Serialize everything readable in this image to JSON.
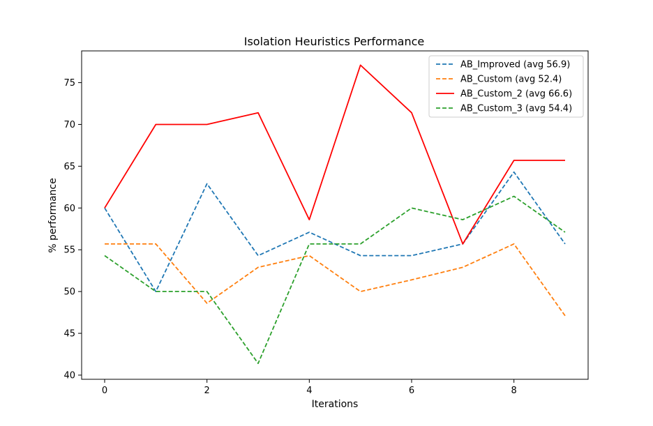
{
  "chart_data": {
    "type": "line",
    "title": "Isolation Heuristics Performance",
    "xlabel": "Iterations",
    "ylabel": "% performance",
    "x": [
      0,
      1,
      2,
      3,
      4,
      5,
      6,
      7,
      8,
      9
    ],
    "xlim": [
      -0.45,
      9.45
    ],
    "ylim": [
      39.5,
      78.8
    ],
    "xticks": [
      0,
      2,
      4,
      6,
      8
    ],
    "yticks": [
      40,
      45,
      50,
      55,
      60,
      65,
      70,
      75
    ],
    "grid": false,
    "legend_position": "top-right",
    "series": [
      {
        "name": "AB_Improved (avg 56.9)",
        "color": "#1f77b4",
        "linestyle": "dashed",
        "values": [
          60.0,
          50.0,
          62.9,
          54.3,
          57.1,
          54.3,
          54.3,
          55.7,
          64.3,
          55.7
        ]
      },
      {
        "name": "AB_Custom (avg 52.4)",
        "color": "#ff7f0e",
        "linestyle": "dashed",
        "values": [
          55.7,
          55.7,
          48.6,
          52.9,
          54.3,
          50.0,
          51.4,
          52.9,
          55.7,
          47.1
        ]
      },
      {
        "name": "AB_Custom_2 (avg 66.6)",
        "color": "#ff0000",
        "linestyle": "solid",
        "values": [
          60.0,
          70.0,
          70.0,
          71.4,
          58.6,
          77.1,
          71.4,
          55.7,
          65.7,
          65.7
        ]
      },
      {
        "name": "AB_Custom_3 (avg 54.4)",
        "color": "#2ca02c",
        "linestyle": "dashed",
        "values": [
          54.3,
          50.0,
          50.0,
          41.4,
          55.7,
          55.7,
          60.0,
          58.6,
          61.4,
          57.1
        ]
      }
    ]
  }
}
